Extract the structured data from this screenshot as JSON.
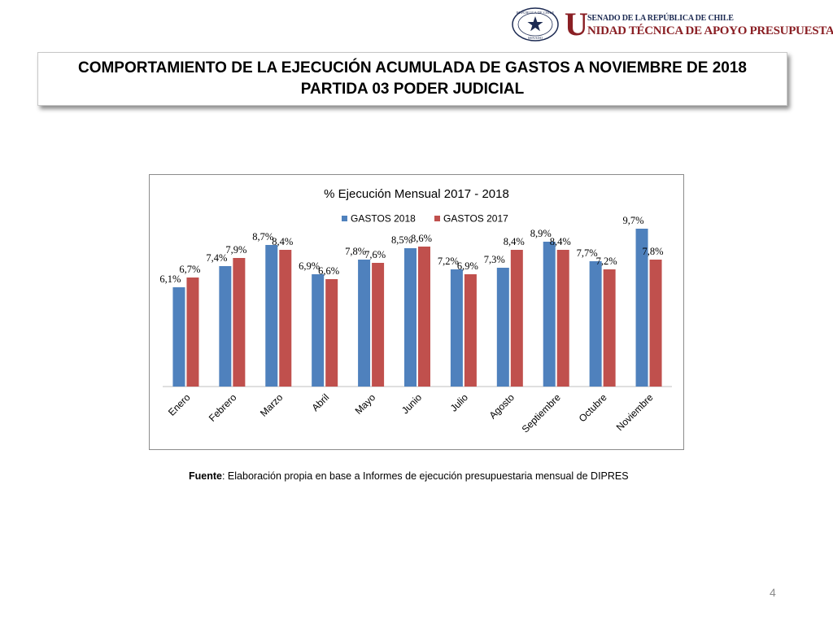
{
  "header": {
    "logo_u": "U",
    "logo_line1": "SENADO DE LA REPÚBLICA DE CHILE",
    "logo_line2": "NIDAD TÉCNICA DE APOYO PRESUPUESTARIO",
    "seal_text_top": "REPÚBLICA DE CHILE",
    "seal_text_bottom": "SENADO"
  },
  "title": {
    "line1": "COMPORTAMIENTO DE LA EJECUCIÓN ACUMULADA DE GASTOS A NOVIEMBRE DE 2018",
    "line2": "PARTIDA 03 PODER JUDICIAL"
  },
  "chart_data": {
    "type": "bar",
    "title": "% Ejecución Mensual 2017 - 2018",
    "categories": [
      "Enero",
      "Febrero",
      "Marzo",
      "Abril",
      "Mayo",
      "Junio",
      "Julio",
      "Agosto",
      "Septiembre",
      "Octubre",
      "Noviembre"
    ],
    "series": [
      {
        "name": "GASTOS 2018",
        "color": "#4f81bd",
        "values": [
          6.1,
          7.4,
          8.7,
          6.9,
          7.8,
          8.5,
          7.2,
          7.3,
          8.9,
          7.7,
          9.7
        ],
        "labels": [
          "6,1%",
          "7,4%",
          "8,7%",
          "6,9%",
          "7,8%",
          "8,5%",
          "7,2%",
          "7,3%",
          "8,9%",
          "7,7%",
          "9,7%"
        ]
      },
      {
        "name": "GASTOS 2017",
        "color": "#c0504d",
        "values": [
          6.7,
          7.9,
          8.4,
          6.6,
          7.6,
          8.6,
          6.9,
          8.4,
          8.4,
          7.2,
          7.8
        ],
        "labels": [
          "6,7%",
          "7,9%",
          "8,4%",
          "6,6%",
          "7,6%",
          "8,6%",
          "6,9%",
          "8,4%",
          "8,4%",
          "7,2%",
          "7,8%"
        ]
      }
    ],
    "ylim": [
      0,
      12
    ],
    "grid": false,
    "legend": "top-center",
    "xlabel": "",
    "ylabel": ""
  },
  "source": {
    "label": "Fuente",
    "text": ": Elaboración propia en base  a Informes de ejecución presupuestaria mensual de DIPRES"
  },
  "page_number": "4"
}
